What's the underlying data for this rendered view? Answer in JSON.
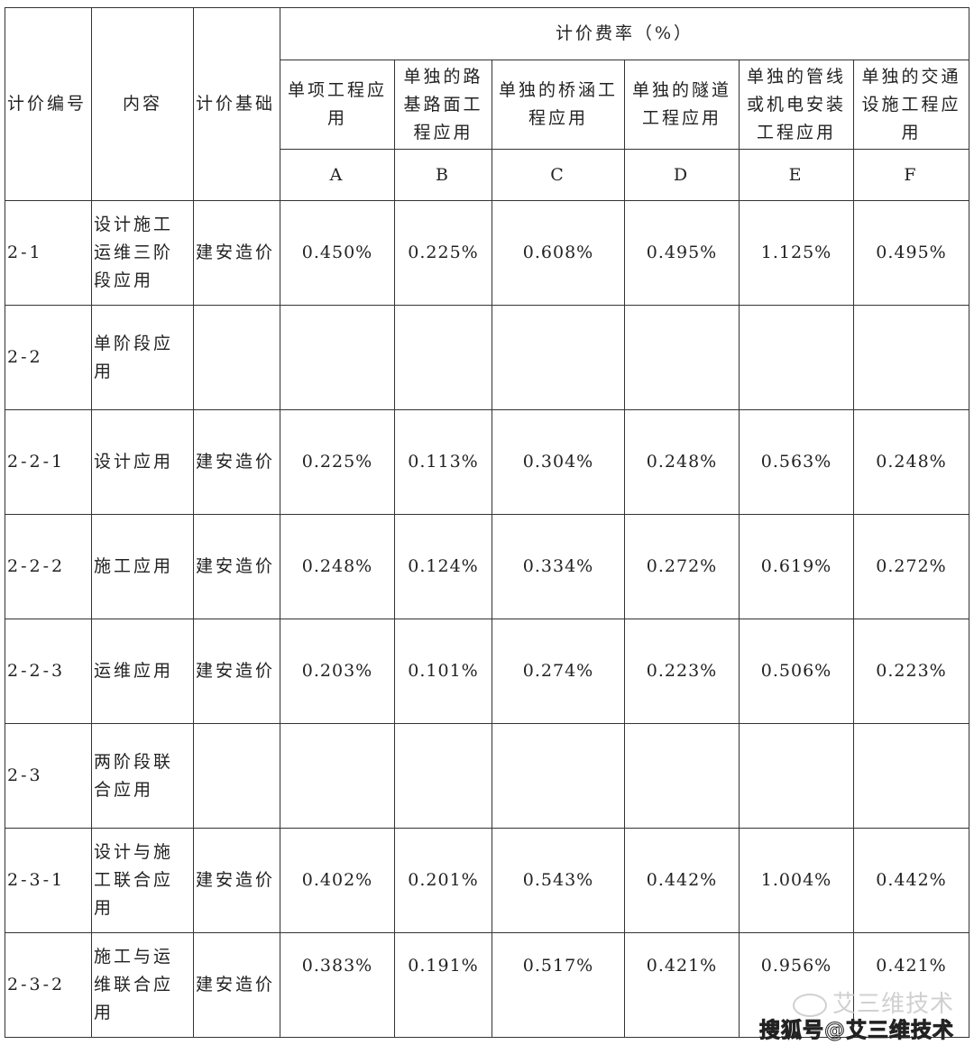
{
  "header": {
    "code": "计价编号",
    "content": "内容",
    "basis": "计价基础",
    "rate_group": "计价费率（%）",
    "columns": [
      {
        "label": "单项工程应用",
        "letter": "A"
      },
      {
        "label": "单独的路基路面工程应用",
        "letter": "B"
      },
      {
        "label": "单独的桥涵工程应用",
        "letter": "C"
      },
      {
        "label": "单独的隧道工程应用",
        "letter": "D"
      },
      {
        "label": "单独的管线或机电安装工程应用",
        "letter": "E"
      },
      {
        "label": "单独的交通设施工程应用",
        "letter": "F"
      }
    ]
  },
  "rows": [
    {
      "code": "2-1",
      "content": "设计施工运维三阶段应用",
      "basis": "建安造价",
      "values": [
        "0.450%",
        "0.225%",
        "0.608%",
        "0.495%",
        "1.125%",
        "0.495%"
      ]
    },
    {
      "code": "2-2",
      "content": "单阶段应用",
      "basis": "",
      "values": [
        "",
        "",
        "",
        "",
        "",
        ""
      ]
    },
    {
      "code": "2-2-1",
      "content": "设计应用",
      "basis": "建安造价",
      "values": [
        "0.225%",
        "0.113%",
        "0.304%",
        "0.248%",
        "0.563%",
        "0.248%"
      ]
    },
    {
      "code": "2-2-2",
      "content": "施工应用",
      "basis": "建安造价",
      "values": [
        "0.248%",
        "0.124%",
        "0.334%",
        "0.272%",
        "0.619%",
        "0.272%"
      ]
    },
    {
      "code": "2-2-3",
      "content": "运维应用",
      "basis": "建安造价",
      "values": [
        "0.203%",
        "0.101%",
        "0.274%",
        "0.223%",
        "0.506%",
        "0.223%"
      ]
    },
    {
      "code": "2-3",
      "content": "两阶段联合应用",
      "basis": "",
      "values": [
        "",
        "",
        "",
        "",
        "",
        ""
      ]
    },
    {
      "code": "2-3-1",
      "content": "设计与施工联合应用",
      "basis": "建安造价",
      "values": [
        "0.402%",
        "0.201%",
        "0.543%",
        "0.442%",
        "1.004%",
        "0.442%"
      ]
    },
    {
      "code": "2-3-2",
      "content": "施工与运维联合应用",
      "basis": "建安造价",
      "values": [
        "0.383%",
        "0.191%",
        "0.517%",
        "0.421%",
        "0.956%",
        "0.421%"
      ]
    }
  ],
  "watermark": {
    "icon": "wechat-icon",
    "line1": "艾三维技术",
    "line2": "搜狐号@艾三维技术"
  }
}
